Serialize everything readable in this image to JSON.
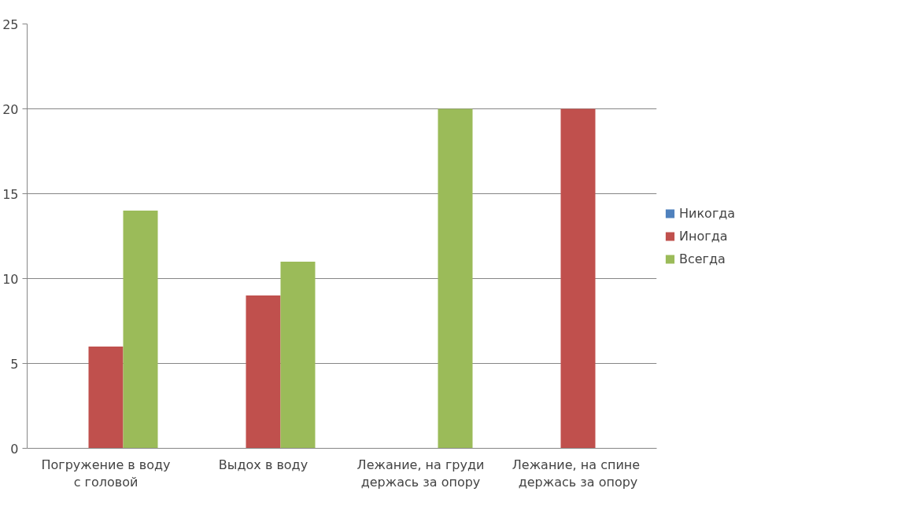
{
  "chart_data": {
    "type": "bar",
    "categories": [
      "Погружение в воду\nс головой",
      "Выдох в воду",
      "Лежание, на груди\nдержась за опору",
      "Лежание, на  спине\nдержась за опору"
    ],
    "series": [
      {
        "name": "Никогда",
        "color": "#4f81bd",
        "values": [
          0,
          0,
          0,
          0
        ]
      },
      {
        "name": "Иногда",
        "color": "#c0504d",
        "values": [
          6,
          9,
          0,
          20
        ]
      },
      {
        "name": "Всегда",
        "color": "#9bbb59",
        "values": [
          14,
          11,
          20,
          0
        ]
      }
    ],
    "ylim": [
      0,
      25
    ],
    "yticks": [
      0,
      5,
      10,
      15,
      20,
      25
    ],
    "grid": "y",
    "legend": "right"
  }
}
